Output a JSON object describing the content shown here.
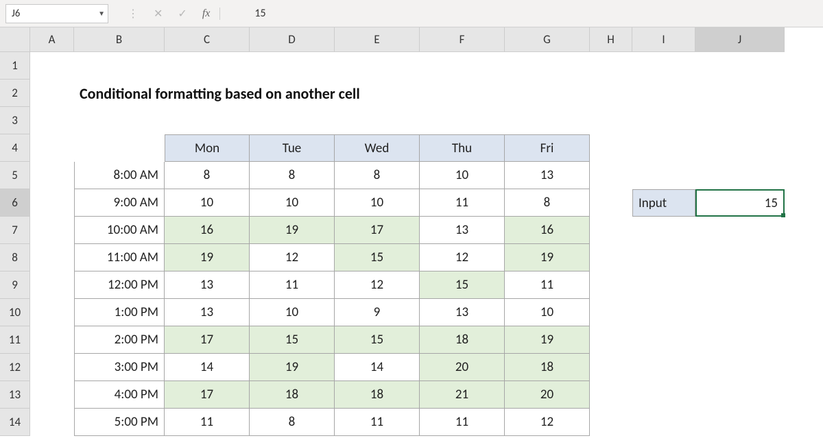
{
  "formula_bar": {
    "cell_ref": "J6",
    "value": "15",
    "fx_label": "fx",
    "cancel_glyph": "✕",
    "enter_glyph": "✓",
    "dropdown_glyph": "▼",
    "dots_glyph": "⋮"
  },
  "columns": [
    {
      "letter": "A",
      "width": 64
    },
    {
      "letter": "B",
      "width": 132
    },
    {
      "letter": "C",
      "width": 124
    },
    {
      "letter": "D",
      "width": 124
    },
    {
      "letter": "E",
      "width": 124
    },
    {
      "letter": "F",
      "width": 124
    },
    {
      "letter": "G",
      "width": 124
    },
    {
      "letter": "H",
      "width": 62
    },
    {
      "letter": "I",
      "width": 92
    },
    {
      "letter": "J",
      "width": 130
    }
  ],
  "visible_row_numbers": [
    1,
    2,
    3,
    4,
    5,
    6,
    7,
    8,
    9,
    10,
    11,
    12,
    13,
    14
  ],
  "selected_column": "J",
  "selected_row": 6,
  "title": "Conditional formatting based on another cell",
  "table": {
    "header_row": 4,
    "days": [
      "Mon",
      "Tue",
      "Wed",
      "Thu",
      "Fri"
    ],
    "row_headers": [
      "8:00 AM",
      "9:00 AM",
      "10:00 AM",
      "11:00 AM",
      "12:00 PM",
      "1:00 PM",
      "2:00 PM",
      "3:00 PM",
      "4:00 PM",
      "5:00 PM"
    ],
    "data": [
      [
        8,
        8,
        8,
        10,
        13
      ],
      [
        10,
        10,
        10,
        11,
        8
      ],
      [
        16,
        19,
        17,
        13,
        16
      ],
      [
        19,
        12,
        15,
        12,
        19
      ],
      [
        13,
        11,
        12,
        15,
        11
      ],
      [
        13,
        10,
        9,
        13,
        10
      ],
      [
        17,
        15,
        15,
        18,
        19
      ],
      [
        14,
        19,
        14,
        20,
        18
      ],
      [
        17,
        18,
        18,
        21,
        20
      ],
      [
        11,
        8,
        11,
        11,
        12
      ]
    ],
    "threshold": 15,
    "header_bg": "#dce4f0",
    "highlight_bg": "#e2efda",
    "border_color": "#a6a6a6"
  },
  "input": {
    "label": "Input",
    "value": 15,
    "accent": "#217346"
  }
}
